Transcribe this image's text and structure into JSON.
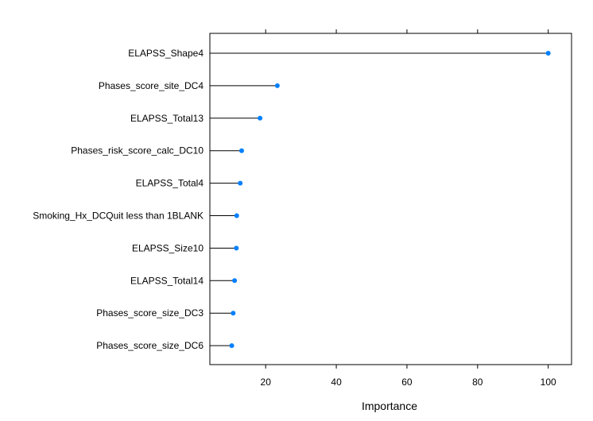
{
  "chart_data": {
    "type": "dotplot",
    "xlabel": "Importance",
    "ylabel": "",
    "title": "",
    "xlim": [
      4.2,
      106.6
    ],
    "xticks": [
      20,
      40,
      60,
      80,
      100
    ],
    "grid": false,
    "point_color": "#0080ff",
    "line_color": "#000000",
    "categories": [
      "ELAPSS_Shape4",
      "Phases_score_site_DC4",
      "ELAPSS_Total13",
      "Phases_risk_score_calc_DC10",
      "ELAPSS_Total4",
      "Smoking_Hx_DCQuit less than 1BLANK",
      "ELAPSS_Size10",
      "ELAPSS_Total14",
      "Phases_score_size_DC3",
      "Phases_score_size_DC6"
    ],
    "values": [
      100,
      23.3,
      18.4,
      13.2,
      12.8,
      11.8,
      11.7,
      11.2,
      10.8,
      10.4
    ]
  }
}
